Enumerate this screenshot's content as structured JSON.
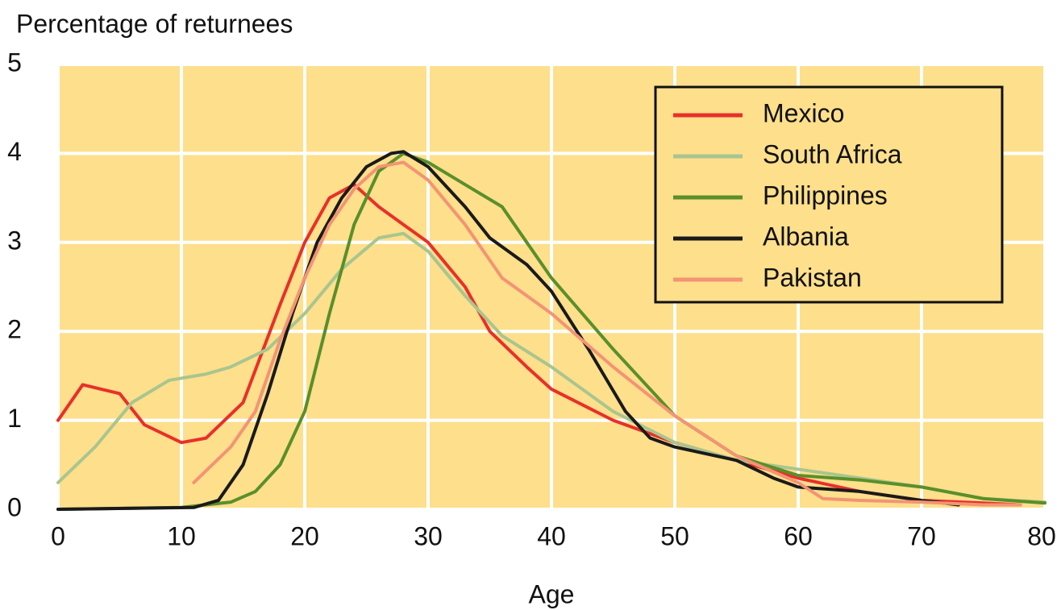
{
  "chart_data": {
    "type": "line",
    "title": "Percentage of returnees",
    "xlabel": "Age",
    "xlim": [
      0,
      80
    ],
    "xticks": [
      0,
      10,
      20,
      30,
      40,
      50,
      60,
      70,
      80
    ],
    "ylim": [
      0,
      5
    ],
    "yticks": [
      0,
      1,
      2,
      3,
      4,
      5
    ],
    "grid": true,
    "legend": "upper right",
    "background": "#fddf8c",
    "series": [
      {
        "name": "Mexico",
        "color": "#e8302a",
        "x": [
          0,
          2,
          5,
          7,
          10,
          12,
          15,
          18,
          20,
          22,
          24,
          26,
          28,
          30,
          33,
          35,
          38,
          40,
          45,
          50,
          55,
          60,
          65,
          70,
          75,
          78
        ],
        "values": [
          1.0,
          1.4,
          1.3,
          0.95,
          0.75,
          0.8,
          1.2,
          2.3,
          3.0,
          3.5,
          3.65,
          3.4,
          3.2,
          3.0,
          2.5,
          2.0,
          1.6,
          1.35,
          1.0,
          0.75,
          0.55,
          0.35,
          0.2,
          0.1,
          0.07,
          0.05
        ]
      },
      {
        "name": "South Africa",
        "color": "#a9c58f",
        "x": [
          0,
          3,
          6,
          9,
          12,
          14,
          17,
          20,
          23,
          26,
          28,
          30,
          33,
          36,
          40,
          45,
          50,
          55,
          60,
          65,
          70,
          75,
          80
        ],
        "values": [
          0.3,
          0.7,
          1.2,
          1.45,
          1.52,
          1.6,
          1.8,
          2.2,
          2.7,
          3.05,
          3.1,
          2.9,
          2.4,
          1.95,
          1.6,
          1.1,
          0.75,
          0.55,
          0.45,
          0.35,
          0.25,
          0.12,
          0.08
        ]
      },
      {
        "name": "Philippines",
        "color": "#5a8f2a",
        "x": [
          0,
          10,
          14,
          16,
          18,
          20,
          22,
          24,
          26,
          28,
          30,
          33,
          36,
          38,
          40,
          45,
          50,
          55,
          60,
          65,
          70,
          75,
          80
        ],
        "values": [
          0,
          0.02,
          0.08,
          0.2,
          0.5,
          1.1,
          2.2,
          3.2,
          3.8,
          4.0,
          3.9,
          3.65,
          3.4,
          3.0,
          2.6,
          1.8,
          1.05,
          0.6,
          0.38,
          0.33,
          0.25,
          0.12,
          0.07
        ]
      },
      {
        "name": "Albania",
        "color": "#1a1a1a",
        "x": [
          0,
          11,
          13,
          15,
          17,
          19,
          21,
          23,
          25,
          27,
          28,
          30,
          33,
          35,
          38,
          40,
          43,
          46,
          48,
          50,
          55,
          58,
          60,
          65,
          70,
          73
        ],
        "values": [
          0,
          0.02,
          0.1,
          0.5,
          1.3,
          2.2,
          3.0,
          3.5,
          3.85,
          4.0,
          4.02,
          3.85,
          3.4,
          3.05,
          2.75,
          2.45,
          1.8,
          1.1,
          0.8,
          0.7,
          0.55,
          0.35,
          0.25,
          0.2,
          0.1,
          0.05
        ]
      },
      {
        "name": "Pakistan",
        "color": "#f39474",
        "x": [
          11,
          14,
          16,
          18,
          20,
          22,
          24,
          26,
          28,
          30,
          33,
          36,
          40,
          45,
          50,
          55,
          60,
          62,
          65,
          70,
          75,
          78
        ],
        "values": [
          0.3,
          0.7,
          1.1,
          1.9,
          2.6,
          3.2,
          3.6,
          3.85,
          3.9,
          3.7,
          3.2,
          2.6,
          2.2,
          1.6,
          1.05,
          0.6,
          0.3,
          0.12,
          0.1,
          0.08,
          0.05,
          0.05
        ]
      }
    ]
  }
}
